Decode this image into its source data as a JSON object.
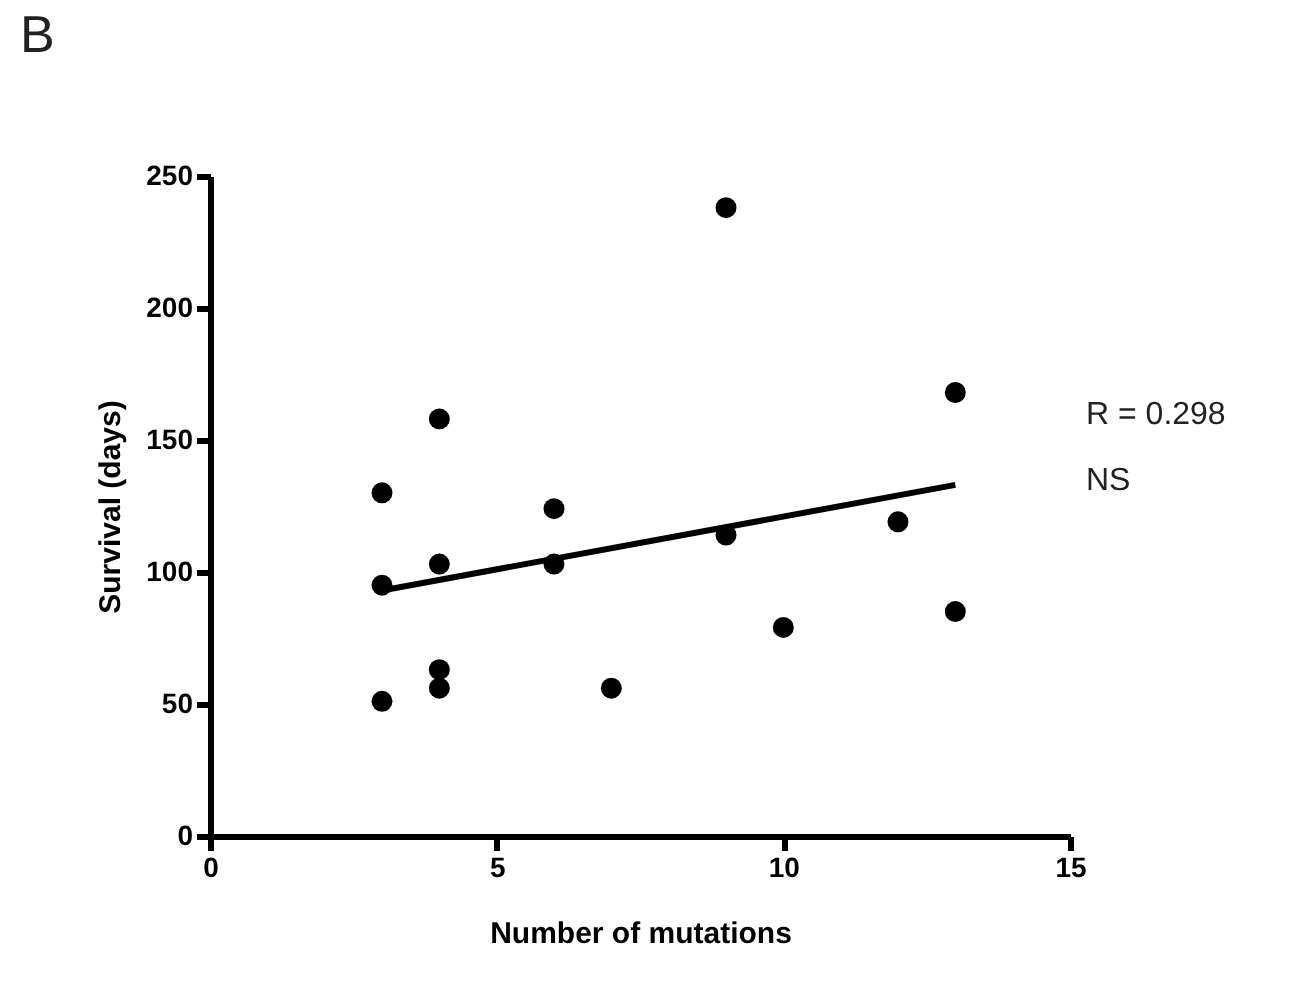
{
  "chart_data": {
    "type": "scatter",
    "xlabel": "Number of mutations",
    "ylabel": "Survival (days)",
    "x": [
      3,
      3,
      3,
      4,
      4,
      4,
      4,
      6,
      6,
      7,
      9,
      9,
      10,
      12,
      13,
      13
    ],
    "series": [
      {
        "color": "#000000",
        "marker": "circle",
        "values": [
          130,
          95,
          51,
          158,
          103,
          63,
          56,
          124,
          103,
          56,
          238,
          114,
          79,
          119,
          168,
          85
        ]
      },
      {
        "type": "line",
        "color": "#000000",
        "x": [
          3,
          13
        ],
        "values": [
          93,
          133
        ],
        "line_style": "solid"
      }
    ],
    "xlim": [
      0,
      15
    ],
    "xticks": [
      0,
      5,
      10,
      15
    ],
    "ylim": [
      0,
      250
    ],
    "yticks": [
      0,
      50,
      100,
      150,
      200,
      250
    ],
    "grid": false,
    "annotations": [
      "B",
      "R = 0.298",
      "NS"
    ]
  }
}
